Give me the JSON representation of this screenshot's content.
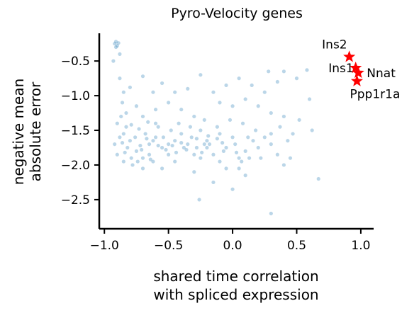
{
  "chart_data": {
    "type": "scatter",
    "title": "Pyro-Velocity genes",
    "xlabel": [
      "shared time correlation",
      "with spliced expression"
    ],
    "ylabel": [
      "negative mean",
      "absolute error"
    ],
    "xlim": [
      -1.04,
      1.1
    ],
    "ylim": [
      -2.92,
      -0.1
    ],
    "xticks": [
      -1.0,
      -0.5,
      0.0,
      0.5,
      1.0
    ],
    "xtick_labels": [
      "−1.0",
      "−0.5",
      "0.0",
      "0.5",
      "1.0"
    ],
    "yticks": [
      -2.5,
      -2.0,
      -1.5,
      -1.0,
      -0.5
    ],
    "ytick_labels": [
      "−2.5",
      "−2.0",
      "−1.5",
      "−1.0",
      "−0.5"
    ],
    "grid": false,
    "point_color": "#1f77b4",
    "point_alpha": 0.3,
    "highlight_color": "#ff0000",
    "highlighted_genes": [
      {
        "name": "Ins2",
        "x": 0.91,
        "y": -0.44
      },
      {
        "name": "Ins1",
        "x": 0.96,
        "y": -0.6
      },
      {
        "name": "Nnat",
        "x": 0.98,
        "y": -0.67
      },
      {
        "name": "Ppp1r1a",
        "x": 0.97,
        "y": -0.79
      }
    ],
    "background_points": [
      [
        -0.88,
        -0.75
      ],
      [
        -0.85,
        -0.95
      ],
      [
        -0.86,
        -1.1
      ],
      [
        -0.8,
        -0.88
      ],
      [
        -0.7,
        -0.72
      ],
      [
        -0.62,
        -0.95
      ],
      [
        -0.55,
        -0.82
      ],
      [
        -0.45,
        -0.95
      ],
      [
        -0.35,
        -0.9
      ],
      [
        -0.25,
        -0.7
      ],
      [
        -0.15,
        -0.95
      ],
      [
        -0.05,
        -0.85
      ],
      [
        0.05,
        -0.75
      ],
      [
        0.15,
        -0.85
      ],
      [
        0.25,
        -0.95
      ],
      [
        0.28,
        -0.65
      ],
      [
        0.35,
        -0.8
      ],
      [
        0.4,
        -0.65
      ],
      [
        0.5,
        -0.75
      ],
      [
        0.58,
        -0.63
      ],
      [
        0.52,
        -1.35
      ],
      [
        0.6,
        -1.05
      ],
      [
        -0.1,
        -1.1
      ],
      [
        0.0,
        -1.15
      ],
      [
        0.1,
        -1.05
      ],
      [
        0.2,
        -1.15
      ],
      [
        0.3,
        -1.25
      ],
      [
        0.4,
        -1.3
      ],
      [
        0.47,
        -1.55
      ],
      [
        0.43,
        -1.65
      ],
      [
        0.3,
        -1.7
      ],
      [
        0.35,
        -1.85
      ],
      [
        0.2,
        -1.75
      ],
      [
        0.1,
        -1.8
      ],
      [
        0.05,
        -1.9
      ],
      [
        -0.05,
        -1.75
      ],
      [
        0.0,
        -1.6
      ],
      [
        -0.1,
        -1.55
      ],
      [
        -0.2,
        -1.65
      ],
      [
        -0.25,
        -1.5
      ],
      [
        -0.3,
        -1.3
      ],
      [
        -0.4,
        -1.2
      ],
      [
        -0.5,
        -1.1
      ],
      [
        -0.6,
        -1.2
      ],
      [
        -0.7,
        -1.3
      ],
      [
        -0.75,
        -1.15
      ],
      [
        -0.83,
        -1.25
      ],
      [
        -0.9,
        -1.4
      ],
      [
        -0.85,
        -1.55
      ],
      [
        -0.8,
        -1.65
      ],
      [
        -0.75,
        -1.8
      ],
      [
        -0.7,
        -1.9
      ],
      [
        -0.65,
        -1.7
      ],
      [
        -0.6,
        -1.6
      ],
      [
        -0.55,
        -1.75
      ],
      [
        -0.5,
        -1.85
      ],
      [
        -0.45,
        -1.65
      ],
      [
        -0.4,
        -1.55
      ],
      [
        -0.35,
        -1.7
      ],
      [
        -0.3,
        -1.85
      ],
      [
        -0.25,
        -1.9
      ],
      [
        -0.2,
        -1.75
      ],
      [
        -0.15,
        -1.85
      ],
      [
        -0.1,
        -1.95
      ],
      [
        -0.05,
        -2.05
      ],
      [
        0.05,
        -2.05
      ],
      [
        0.1,
        -2.15
      ],
      [
        -0.55,
        -2.05
      ],
      [
        -0.62,
        -1.95
      ],
      [
        -0.7,
        -2.05
      ],
      [
        -0.78,
        -2.0
      ],
      [
        -0.85,
        -1.95
      ],
      [
        -0.9,
        -1.85
      ],
      [
        -0.92,
        -1.7
      ],
      [
        -0.88,
        -1.6
      ],
      [
        -0.82,
        -1.75
      ],
      [
        -0.76,
        -1.6
      ],
      [
        -0.68,
        -1.55
      ],
      [
        -0.58,
        -1.45
      ],
      [
        -0.48,
        -1.5
      ],
      [
        -0.42,
        -1.4
      ],
      [
        -0.33,
        -1.45
      ],
      [
        -0.22,
        -1.35
      ],
      [
        -0.12,
        -1.45
      ],
      [
        -0.02,
        -1.35
      ],
      [
        0.08,
        -1.4
      ],
      [
        0.18,
        -1.5
      ],
      [
        0.25,
        -1.6
      ],
      [
        0.3,
        -1.55
      ],
      [
        -0.15,
        -2.25
      ],
      [
        0.0,
        -2.35
      ],
      [
        -0.3,
        -2.1
      ],
      [
        -0.45,
        -1.95
      ],
      [
        -0.65,
        -1.85
      ],
      [
        -0.72,
        -1.72
      ],
      [
        -0.5,
        -1.7
      ],
      [
        -0.38,
        -1.75
      ],
      [
        -0.28,
        -1.62
      ],
      [
        -0.18,
        -1.7
      ],
      [
        -0.08,
        -1.68
      ],
      [
        0.02,
        -1.7
      ],
      [
        0.12,
        -1.6
      ],
      [
        0.22,
        -1.9
      ],
      [
        0.4,
        -2.0
      ],
      [
        0.37,
        -1.45
      ],
      [
        0.45,
        -1.9
      ],
      [
        -0.92,
        -0.25
      ],
      [
        -0.91,
        -0.22
      ],
      [
        -0.9,
        -0.28
      ],
      [
        -0.89,
        -0.24
      ],
      [
        -0.91,
        -0.3
      ],
      [
        -0.93,
        -0.5
      ],
      [
        -0.88,
        -0.4
      ],
      [
        -0.6,
        -1.4
      ],
      [
        -0.62,
        -1.65
      ],
      [
        -0.58,
        -1.72
      ],
      [
        -0.54,
        -1.6
      ],
      [
        -0.52,
        -1.78
      ],
      [
        -0.47,
        -1.72
      ],
      [
        -0.44,
        -1.82
      ],
      [
        -0.4,
        -1.68
      ],
      [
        -0.36,
        -1.78
      ],
      [
        -0.32,
        -1.6
      ],
      [
        -0.28,
        -1.75
      ],
      [
        -0.24,
        -1.82
      ],
      [
        -0.22,
        -1.7
      ],
      [
        -0.19,
        -1.58
      ],
      [
        -0.86,
        -1.68
      ],
      [
        -0.84,
        -1.82
      ],
      [
        -0.79,
        -1.9
      ],
      [
        -0.74,
        -1.95
      ],
      [
        -0.71,
        -1.78
      ],
      [
        -0.67,
        -1.62
      ],
      [
        -0.64,
        -1.92
      ],
      [
        -0.79,
        -1.42
      ],
      [
        -0.73,
        -1.48
      ],
      [
        -0.66,
        -1.38
      ],
      [
        -0.87,
        -1.3
      ],
      [
        -0.83,
        -1.45
      ],
      [
        -0.12,
        -1.62
      ],
      [
        -0.07,
        -1.8
      ],
      [
        0.03,
        -1.82
      ],
      [
        0.07,
        -1.95
      ],
      [
        0.13,
        -1.9
      ],
      [
        0.16,
        -1.65
      ],
      [
        -0.26,
        -2.5
      ],
      [
        0.3,
        -2.7
      ],
      [
        0.67,
        -2.2
      ],
      [
        0.62,
        -1.5
      ]
    ]
  }
}
